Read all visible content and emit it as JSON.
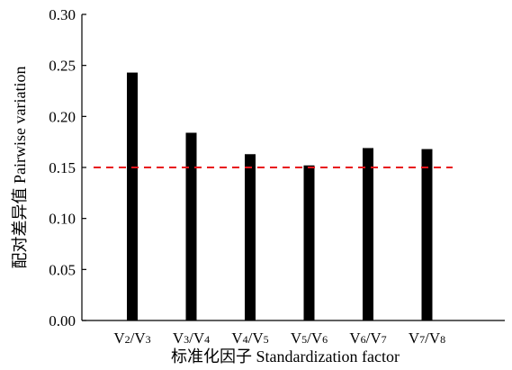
{
  "chart_data": {
    "type": "bar",
    "categories": [
      {
        "main": "V",
        "sub1": "2",
        "sep": "/V",
        "sub2": "3"
      },
      {
        "main": "V",
        "sub1": "3",
        "sep": "/V",
        "sub2": "4"
      },
      {
        "main": "V",
        "sub1": "4",
        "sep": "/V",
        "sub2": "5"
      },
      {
        "main": "V",
        "sub1": "5",
        "sep": "/V",
        "sub2": "6"
      },
      {
        "main": "V",
        "sub1": "6",
        "sep": "/V",
        "sub2": "7"
      },
      {
        "main": "V",
        "sub1": "7",
        "sep": "/V",
        "sub2": "8"
      }
    ],
    "values": [
      0.243,
      0.184,
      0.163,
      0.152,
      0.169,
      0.168
    ],
    "xlabel": "标准化因子 Standardization factor",
    "ylabel": "配对差异值  Pairwise variation",
    "ylim": [
      0,
      0.3
    ],
    "yticks": [
      "0.00",
      "0.05",
      "0.10",
      "0.15",
      "0.20",
      "0.25",
      "0.30"
    ],
    "threshold": {
      "value": 0.15,
      "style": "dashed"
    },
    "grid": false,
    "colors": {
      "bar": "#000000",
      "threshold": "#e8141b",
      "axis": "#000000"
    }
  }
}
